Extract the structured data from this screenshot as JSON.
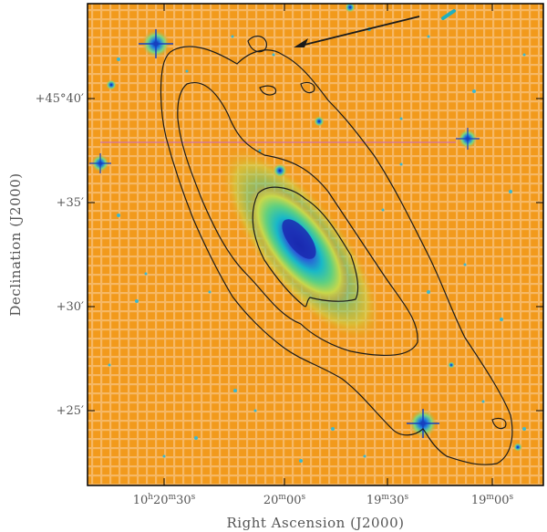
{
  "figure": {
    "xlabel": "Right Ascension (J2000)",
    "ylabel": "Declination (J2000)",
    "x_ticks": [
      {
        "h": "10",
        "m": "20",
        "s": "30"
      },
      {
        "h": "",
        "m": "20",
        "s": "00"
      },
      {
        "h": "",
        "m": "19",
        "s": "30"
      },
      {
        "h": "",
        "m": "19",
        "s": "00"
      }
    ],
    "y_ticks": [
      "+45°40′",
      "+35′",
      "+30′",
      "+25′"
    ],
    "colors": {
      "background": "#f29a1c",
      "grid": "#f7c48a",
      "contour": "#1a1a1a",
      "frame": "#000000",
      "star_core": "#1030c0",
      "galaxy_outer": "#7fd06a",
      "galaxy_mid": "#20c0b0",
      "galaxy_core": "#1a2ab0"
    }
  }
}
